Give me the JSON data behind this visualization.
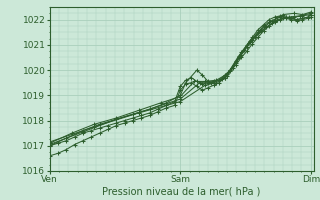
{
  "title": "",
  "xlabel": "Pression niveau de la mer( hPa )",
  "ylabel": "",
  "bg_color": "#cce8d8",
  "grid_color": "#aacfbc",
  "line_color": "#2d5e2d",
  "ylim": [
    1016.0,
    1022.5
  ],
  "xlim": [
    0,
    95
  ],
  "xtick_positions": [
    0,
    47,
    94
  ],
  "xtick_labels": [
    "Ven",
    "Sam",
    "Dim"
  ],
  "ytick_positions": [
    1016,
    1017,
    1018,
    1019,
    1020,
    1021,
    1022
  ],
  "series": [
    [
      [
        0,
        1017.0
      ],
      [
        3,
        1017.1
      ],
      [
        6,
        1017.2
      ],
      [
        9,
        1017.35
      ],
      [
        12,
        1017.5
      ],
      [
        15,
        1017.6
      ],
      [
        18,
        1017.7
      ],
      [
        21,
        1017.8
      ],
      [
        24,
        1017.9
      ],
      [
        27,
        1018.0
      ],
      [
        30,
        1018.1
      ],
      [
        33,
        1018.2
      ],
      [
        36,
        1018.3
      ],
      [
        39,
        1018.45
      ],
      [
        42,
        1018.6
      ],
      [
        45,
        1018.75
      ],
      [
        47,
        1019.35
      ],
      [
        49,
        1019.6
      ],
      [
        51,
        1019.7
      ],
      [
        53,
        1019.55
      ],
      [
        55,
        1019.45
      ],
      [
        57,
        1019.5
      ],
      [
        59,
        1019.55
      ],
      [
        61,
        1019.6
      ],
      [
        63,
        1019.8
      ],
      [
        65,
        1020.0
      ],
      [
        67,
        1020.3
      ],
      [
        69,
        1020.6
      ],
      [
        71,
        1020.9
      ],
      [
        73,
        1021.2
      ],
      [
        75,
        1021.5
      ],
      [
        77,
        1021.75
      ],
      [
        79,
        1021.9
      ],
      [
        81,
        1022.0
      ],
      [
        83,
        1022.1
      ],
      [
        85,
        1022.1
      ],
      [
        87,
        1022.05
      ],
      [
        89,
        1022.0
      ],
      [
        91,
        1022.05
      ],
      [
        93,
        1022.1
      ],
      [
        94,
        1022.2
      ]
    ],
    [
      [
        0,
        1016.6
      ],
      [
        3,
        1016.7
      ],
      [
        6,
        1016.85
      ],
      [
        9,
        1017.05
      ],
      [
        12,
        1017.2
      ],
      [
        15,
        1017.35
      ],
      [
        18,
        1017.5
      ],
      [
        21,
        1017.65
      ],
      [
        24,
        1017.8
      ],
      [
        27,
        1017.9
      ],
      [
        30,
        1018.0
      ],
      [
        33,
        1018.1
      ],
      [
        36,
        1018.2
      ],
      [
        39,
        1018.35
      ],
      [
        42,
        1018.5
      ],
      [
        45,
        1018.6
      ],
      [
        47,
        1019.2
      ],
      [
        49,
        1019.45
      ],
      [
        51,
        1019.5
      ],
      [
        53,
        1019.35
      ],
      [
        55,
        1019.2
      ],
      [
        57,
        1019.3
      ],
      [
        59,
        1019.4
      ],
      [
        61,
        1019.5
      ],
      [
        63,
        1019.7
      ],
      [
        65,
        1019.95
      ],
      [
        67,
        1020.2
      ],
      [
        69,
        1020.5
      ],
      [
        71,
        1020.75
      ],
      [
        73,
        1021.05
      ],
      [
        75,
        1021.3
      ],
      [
        77,
        1021.55
      ],
      [
        79,
        1021.75
      ],
      [
        81,
        1021.9
      ],
      [
        83,
        1022.0
      ],
      [
        85,
        1022.05
      ],
      [
        87,
        1022.0
      ],
      [
        89,
        1021.95
      ],
      [
        91,
        1022.0
      ],
      [
        93,
        1022.05
      ],
      [
        94,
        1022.1
      ]
    ],
    [
      [
        0,
        1017.0
      ],
      [
        6,
        1017.3
      ],
      [
        12,
        1017.6
      ],
      [
        18,
        1017.85
      ],
      [
        24,
        1018.05
      ],
      [
        30,
        1018.25
      ],
      [
        36,
        1018.45
      ],
      [
        42,
        1018.7
      ],
      [
        47,
        1019.0
      ],
      [
        49,
        1019.5
      ],
      [
        53,
        1020.0
      ],
      [
        55,
        1019.8
      ],
      [
        57,
        1019.55
      ],
      [
        59,
        1019.5
      ],
      [
        61,
        1019.6
      ],
      [
        63,
        1019.7
      ],
      [
        65,
        1020.0
      ],
      [
        67,
        1020.35
      ],
      [
        69,
        1020.7
      ],
      [
        71,
        1021.0
      ],
      [
        73,
        1021.3
      ],
      [
        75,
        1021.6
      ],
      [
        77,
        1021.8
      ],
      [
        79,
        1022.0
      ],
      [
        81,
        1022.1
      ],
      [
        83,
        1022.15
      ],
      [
        85,
        1022.1
      ],
      [
        87,
        1022.05
      ],
      [
        89,
        1022.0
      ],
      [
        91,
        1022.05
      ],
      [
        93,
        1022.1
      ],
      [
        94,
        1022.2
      ]
    ],
    [
      [
        0,
        1017.1
      ],
      [
        8,
        1017.5
      ],
      [
        16,
        1017.85
      ],
      [
        24,
        1018.1
      ],
      [
        32,
        1018.4
      ],
      [
        40,
        1018.7
      ],
      [
        47,
        1018.95
      ],
      [
        52,
        1019.55
      ],
      [
        56,
        1019.55
      ],
      [
        60,
        1019.6
      ],
      [
        64,
        1019.85
      ],
      [
        68,
        1020.55
      ],
      [
        72,
        1021.1
      ],
      [
        76,
        1021.55
      ],
      [
        80,
        1021.85
      ],
      [
        84,
        1022.05
      ],
      [
        88,
        1022.1
      ],
      [
        91,
        1022.15
      ],
      [
        94,
        1022.2
      ]
    ],
    [
      [
        0,
        1017.05
      ],
      [
        12,
        1017.55
      ],
      [
        24,
        1018.05
      ],
      [
        36,
        1018.45
      ],
      [
        47,
        1018.85
      ],
      [
        54,
        1019.5
      ],
      [
        58,
        1019.5
      ],
      [
        62,
        1019.65
      ],
      [
        66,
        1020.1
      ],
      [
        70,
        1020.8
      ],
      [
        74,
        1021.3
      ],
      [
        78,
        1021.7
      ],
      [
        82,
        1022.0
      ],
      [
        86,
        1022.1
      ],
      [
        90,
        1022.15
      ],
      [
        94,
        1022.25
      ]
    ],
    [
      [
        0,
        1017.15
      ],
      [
        16,
        1017.75
      ],
      [
        32,
        1018.3
      ],
      [
        47,
        1018.75
      ],
      [
        56,
        1019.4
      ],
      [
        60,
        1019.5
      ],
      [
        64,
        1019.75
      ],
      [
        68,
        1020.5
      ],
      [
        72,
        1021.15
      ],
      [
        76,
        1021.6
      ],
      [
        80,
        1021.95
      ],
      [
        84,
        1022.2
      ],
      [
        88,
        1022.25
      ],
      [
        91,
        1022.2
      ],
      [
        94,
        1022.3
      ]
    ]
  ]
}
